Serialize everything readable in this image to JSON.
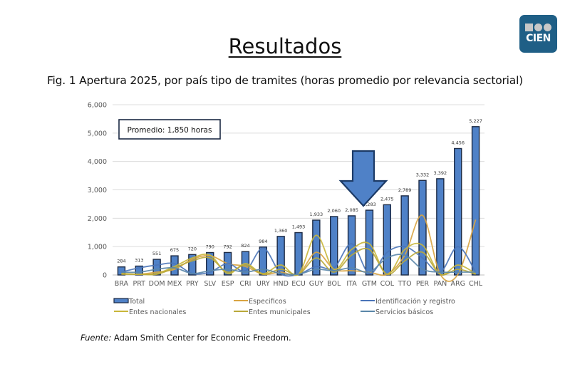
{
  "header": {
    "title": "Resultados",
    "subtitle": "Fig. 1 Apertura 2025, por país tipo de tramites (horas promedio por relevancia sectorial)"
  },
  "logo": {
    "text": "CIEN",
    "bg_color": "#1f5f86"
  },
  "annotation": {
    "box_text": "Promedio: 1,850 horas",
    "arrow_target": "GTM"
  },
  "source": {
    "label": "Fuente:",
    "text": " Adam Smith Center for Economic Freedom."
  },
  "chart_data": {
    "type": "bar",
    "title": "Fig. 1 Apertura 2025, por país tipo de tramites (horas promedio por relevancia sectorial)",
    "xlabel": "",
    "ylabel": "",
    "ylim": [
      0,
      6000
    ],
    "yticks": [
      0,
      1000,
      2000,
      3000,
      4000,
      5000,
      6000
    ],
    "ytick_labels": [
      "0",
      "1,000",
      "2,000",
      "3,000",
      "4,000",
      "5,000",
      "6,000"
    ],
    "grid": true,
    "legend_position": "bottom",
    "categories": [
      "BRA",
      "PRT",
      "DOM",
      "MEX",
      "PRY",
      "SLV",
      "ESP",
      "CRI",
      "URY",
      "HND",
      "ECU",
      "GUY",
      "BOL",
      "ITA",
      "GTM",
      "COL",
      "TTO",
      "PER",
      "PAN",
      "ARG",
      "CHL"
    ],
    "series": [
      {
        "name": "Total",
        "type": "bar",
        "color": "#4f81c7",
        "values": [
          284,
          313,
          551,
          675,
          720,
          790,
          792,
          824,
          984,
          1360,
          1493,
          1933,
          2060,
          2085,
          2283,
          2475,
          2789,
          3332,
          3392,
          4456,
          5227
        ],
        "labels": [
          "284",
          "313",
          "551",
          "675",
          "720",
          "790",
          "792",
          "824",
          "984",
          "1,360",
          "1,493",
          "1,933",
          "2,060",
          "2,085",
          "2,283",
          "2,475",
          "2,789",
          "3,332",
          "3,392",
          "4,456",
          "5,227"
        ]
      },
      {
        "name": "Especificos",
        "type": "line",
        "color": "#d9a441",
        "values": [
          50,
          0,
          100,
          200,
          550,
          680,
          400,
          300,
          0,
          100,
          0,
          800,
          200,
          150,
          100,
          0,
          700,
          2100,
          0,
          0,
          1950
        ]
      },
      {
        "name": "Identificación y registro",
        "type": "line",
        "color": "#4a74b8",
        "values": [
          100,
          250,
          350,
          400,
          50,
          100,
          400,
          150,
          950,
          50,
          0,
          300,
          250,
          1100,
          50,
          800,
          1000,
          600,
          100,
          1000,
          100
        ]
      },
      {
        "name": "Entes nacionales",
        "type": "line",
        "color": "#c9b63a",
        "values": [
          50,
          0,
          50,
          300,
          600,
          700,
          50,
          400,
          50,
          350,
          0,
          1400,
          200,
          900,
          1100,
          0,
          900,
          1050,
          0,
          350,
          50
        ]
      },
      {
        "name": "Entes municipales",
        "type": "line",
        "color": "#b9a83a",
        "values": [
          0,
          0,
          0,
          250,
          500,
          600,
          100,
          350,
          0,
          200,
          0,
          600,
          100,
          700,
          900,
          0,
          500,
          800,
          0,
          200,
          0
        ]
      },
      {
        "name": "Servicios básicos",
        "type": "line",
        "color": "#5a86a8",
        "values": [
          100,
          100,
          200,
          250,
          50,
          150,
          200,
          100,
          200,
          50,
          0,
          200,
          150,
          250,
          100,
          600,
          700,
          200,
          100,
          100,
          100
        ]
      }
    ]
  }
}
